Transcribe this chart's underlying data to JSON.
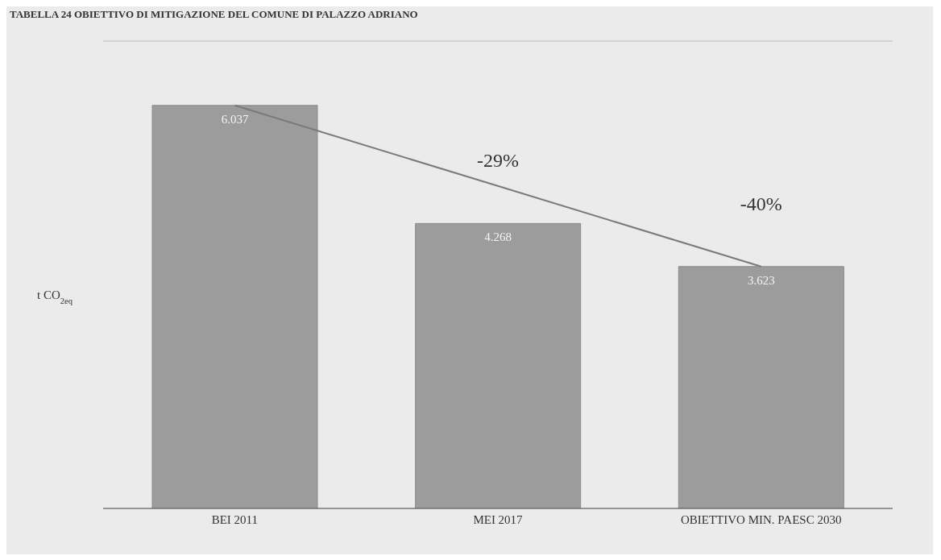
{
  "chart_data": {
    "type": "bar",
    "title": "TABELLA 24 OBIETTIVO DI MITIGAZIONE DEL COMUNE DI PALAZZO ADRIANO",
    "ylabel": "t CO$_{2eq}$",
    "categories": [
      "BEI 2011",
      "MEI 2017",
      "OBIETTIVO MIN. PAESC 2030"
    ],
    "series": [
      {
        "color": "#9c9c9c",
        "values": [
          6037,
          4268,
          3623
        ],
        "value_labels": [
          "6.037",
          "4.268",
          "3.623"
        ]
      },
      {
        "type": "line",
        "color": "#7a7a7a",
        "values": [
          6037,
          null,
          3623
        ]
      }
    ],
    "ylim": [
      0,
      7000
    ],
    "tick_labels": "x",
    "grid": "y",
    "legend": false,
    "annotations": [
      "-29%",
      "-40%"
    ]
  }
}
